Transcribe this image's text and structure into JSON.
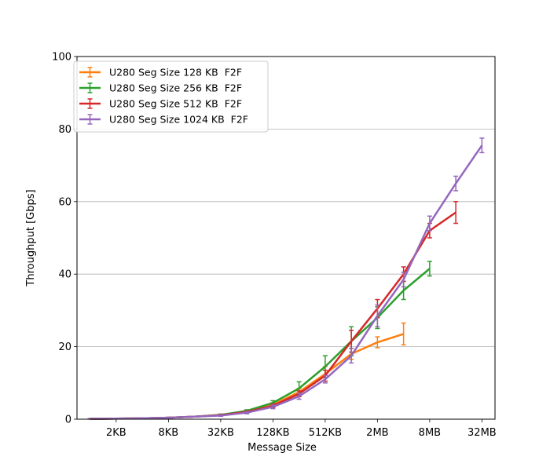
{
  "chart_data": {
    "type": "line",
    "title": "",
    "xlabel": "Message Size",
    "ylabel": "Throughput [Gbps]",
    "x_scale": "log2",
    "x_ticks": [
      {
        "value": 2048,
        "label": "2KB"
      },
      {
        "value": 8192,
        "label": "8KB"
      },
      {
        "value": 32768,
        "label": "32KB"
      },
      {
        "value": 131072,
        "label": "128KB"
      },
      {
        "value": 524288,
        "label": "512KB"
      },
      {
        "value": 2097152,
        "label": "2MB"
      },
      {
        "value": 8388608,
        "label": "8MB"
      },
      {
        "value": 33554432,
        "label": "32MB"
      }
    ],
    "ylim": [
      0,
      100
    ],
    "y_ticks": [
      0,
      20,
      40,
      60,
      80,
      100
    ],
    "grid": "horizontal",
    "legend_position": "top-left",
    "series": [
      {
        "name": "U280 Seg Size 128 KB  F2F",
        "color": "#ff7f0e",
        "x": [
          1024,
          2048,
          4096,
          8192,
          16384,
          32768,
          65536,
          131072,
          262144,
          524288,
          1048576,
          2097152,
          4194304
        ],
        "y": [
          0.1,
          0.15,
          0.25,
          0.4,
          0.7,
          1.2,
          2.1,
          4.0,
          7.5,
          12.5,
          18.0,
          21.2,
          23.5
        ],
        "err": [
          0.05,
          0.05,
          0.05,
          0.1,
          0.1,
          0.2,
          0.3,
          0.5,
          1.0,
          2.0,
          1.5,
          1.5,
          3.0
        ]
      },
      {
        "name": "U280 Seg Size 256 KB  F2F",
        "color": "#2ca02c",
        "x": [
          1024,
          2048,
          4096,
          8192,
          16384,
          32768,
          65536,
          131072,
          262144,
          524288,
          1048576,
          2097152,
          4194304,
          8388608
        ],
        "y": [
          0.1,
          0.15,
          0.25,
          0.4,
          0.7,
          1.2,
          2.3,
          4.5,
          8.5,
          14.5,
          21.5,
          28.0,
          35.5,
          41.5
        ],
        "err": [
          0.05,
          0.05,
          0.05,
          0.1,
          0.1,
          0.2,
          0.3,
          0.6,
          1.8,
          3.0,
          4.0,
          3.0,
          2.5,
          2.0
        ]
      },
      {
        "name": "U280 Seg Size 512 KB  F2F",
        "color": "#d62728",
        "x": [
          1024,
          2048,
          4096,
          8192,
          16384,
          32768,
          65536,
          131072,
          262144,
          524288,
          1048576,
          2097152,
          4194304,
          8388608,
          16777216
        ],
        "y": [
          0.1,
          0.15,
          0.25,
          0.4,
          0.7,
          1.1,
          2.0,
          3.7,
          7.0,
          12.0,
          21.5,
          30.5,
          40.0,
          52.0,
          57.0
        ],
        "err": [
          0.05,
          0.05,
          0.05,
          0.1,
          0.1,
          0.2,
          0.3,
          0.5,
          0.8,
          1.5,
          3.0,
          2.5,
          2.0,
          2.0,
          3.0
        ]
      },
      {
        "name": "U280 Seg Size 1024 KB  F2F",
        "color": "#9467bd",
        "x": [
          1024,
          2048,
          4096,
          8192,
          16384,
          32768,
          65536,
          131072,
          262144,
          524288,
          1048576,
          2097152,
          4194304,
          8388608,
          16777216,
          33554432
        ],
        "y": [
          0.1,
          0.15,
          0.25,
          0.4,
          0.7,
          1.0,
          1.8,
          3.4,
          6.3,
          11.0,
          17.5,
          28.5,
          38.5,
          54.0,
          65.0,
          75.5
        ],
        "err": [
          0.05,
          0.05,
          0.05,
          0.1,
          0.1,
          0.2,
          0.3,
          0.5,
          0.8,
          1.0,
          2.0,
          3.0,
          2.0,
          2.0,
          2.0,
          2.0
        ]
      }
    ]
  }
}
